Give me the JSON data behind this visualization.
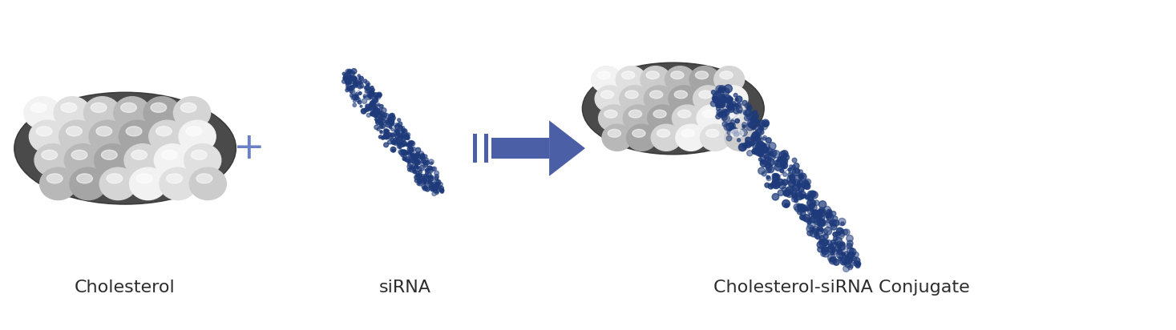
{
  "label_cholesterol": "Cholesterol",
  "label_sirna": "siRNA",
  "label_conjugate": "Cholesterol-siRNA Conjugate",
  "plus_symbol": "+",
  "arrow_color": "#4a5fa5",
  "plus_color": "#6b7fc4",
  "label_color": "#2d2d2d",
  "bg_color": "#ffffff",
  "label_fontsize": 16,
  "fig_width": 14.67,
  "fig_height": 4.12
}
